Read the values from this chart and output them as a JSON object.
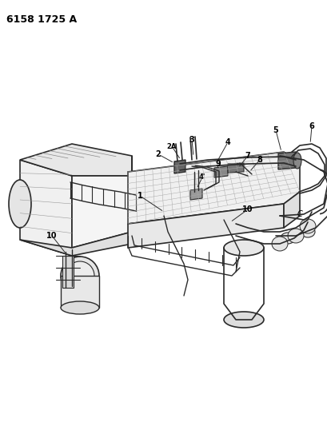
{
  "title": "6158 1725 A",
  "background_color": "#ffffff",
  "line_color": "#2a2a2a",
  "label_color": "#000000",
  "fig_width": 4.1,
  "fig_height": 5.33,
  "dpi": 100
}
